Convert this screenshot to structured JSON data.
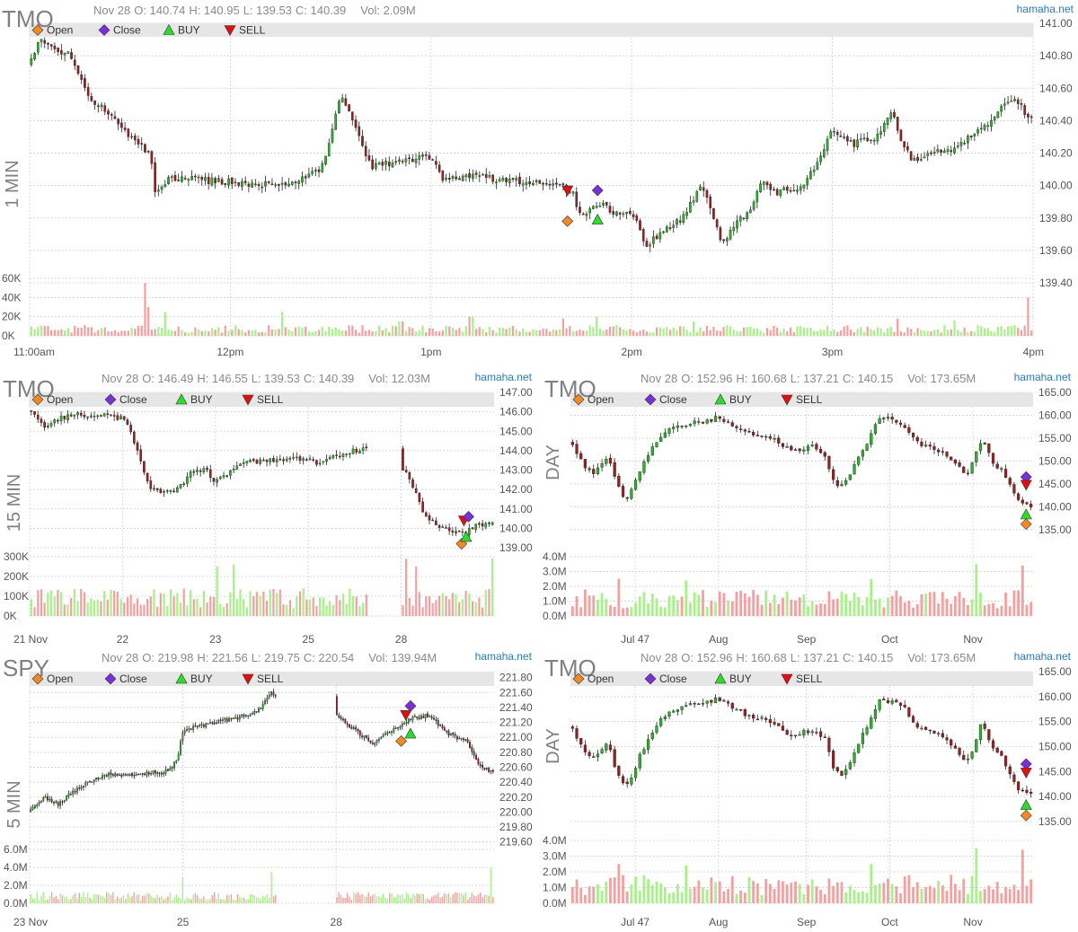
{
  "site": "hamaha.net",
  "legend": {
    "items": [
      {
        "label": "Open",
        "shape": "diamond",
        "color": "#f08a24"
      },
      {
        "label": "Close",
        "shape": "diamond",
        "color": "#7b2fd6"
      },
      {
        "label": "BUY",
        "shape": "triangle-up",
        "color": "#2bdc2b"
      },
      {
        "label": "SELL",
        "shape": "triangle-down",
        "color": "#e01010"
      }
    ]
  },
  "colors": {
    "up_candle": "#2bb52b",
    "down_candle": "#9c1f1f",
    "vol_up": "#a8f08a",
    "vol_down": "#f5a0a0",
    "grid": "#d8d8d8",
    "legend_bg": "#e6e6e6",
    "label": "#808080"
  },
  "chart_data": [
    {
      "id": "c1",
      "type": "candlestick",
      "symbol": "TMO",
      "interval_label": "1 MIN",
      "header": {
        "date": "Nov 28",
        "open": "O: 140.74",
        "high": "H: 140.95",
        "low": "L: 139.53",
        "close": "C: 140.39",
        "volume": "Vol: 2.09M"
      },
      "y_ticks": [
        "141.00",
        "140.80",
        "140.60",
        "140.40",
        "140.20",
        "140.00",
        "139.80",
        "139.60",
        "139.40"
      ],
      "ylim": [
        139.4,
        141.0
      ],
      "vol_ticks": [
        "60K",
        "40K",
        "20K",
        "0K"
      ],
      "vol_max": 60000,
      "x_ticks": [
        {
          "label": "11:00am",
          "pos": 0.0
        },
        {
          "label": "12pm",
          "pos": 0.2
        },
        {
          "label": "1pm",
          "pos": 0.4
        },
        {
          "label": "2pm",
          "pos": 0.6
        },
        {
          "label": "3pm",
          "pos": 0.8
        },
        {
          "label": "4pm",
          "pos": 1.0
        }
      ],
      "anchors": [
        [
          0,
          140.75
        ],
        [
          0.01,
          140.9
        ],
        [
          0.04,
          140.8
        ],
        [
          0.06,
          140.55
        ],
        [
          0.1,
          140.3
        ],
        [
          0.12,
          140.2
        ],
        [
          0.125,
          139.95
        ],
        [
          0.14,
          140.05
        ],
        [
          0.2,
          140.02
        ],
        [
          0.26,
          140.0
        ],
        [
          0.29,
          140.1
        ],
        [
          0.3,
          140.3
        ],
        [
          0.31,
          140.58
        ],
        [
          0.325,
          140.35
        ],
        [
          0.34,
          140.12
        ],
        [
          0.4,
          140.18
        ],
        [
          0.41,
          140.05
        ],
        [
          0.45,
          140.05
        ],
        [
          0.5,
          140.02
        ],
        [
          0.53,
          140.0
        ],
        [
          0.54,
          139.97
        ],
        [
          0.55,
          139.8
        ],
        [
          0.56,
          139.85
        ],
        [
          0.57,
          139.88
        ],
        [
          0.585,
          139.82
        ],
        [
          0.6,
          139.85
        ],
        [
          0.615,
          139.62
        ],
        [
          0.63,
          139.72
        ],
        [
          0.65,
          139.8
        ],
        [
          0.67,
          140.0
        ],
        [
          0.685,
          139.75
        ],
        [
          0.69,
          139.65
        ],
        [
          0.72,
          139.88
        ],
        [
          0.73,
          140.05
        ],
        [
          0.74,
          139.95
        ],
        [
          0.77,
          140.0
        ],
        [
          0.79,
          140.2
        ],
        [
          0.8,
          140.35
        ],
        [
          0.82,
          140.25
        ],
        [
          0.83,
          140.3
        ],
        [
          0.84,
          140.28
        ],
        [
          0.86,
          140.45
        ],
        [
          0.87,
          140.25
        ],
        [
          0.88,
          140.15
        ],
        [
          0.9,
          140.2
        ],
        [
          0.92,
          140.22
        ],
        [
          0.94,
          140.32
        ],
        [
          0.96,
          140.4
        ],
        [
          0.97,
          140.5
        ],
        [
          0.98,
          140.55
        ],
        [
          1.0,
          140.39
        ]
      ],
      "trend_amp": 0.04,
      "n": 300,
      "vol_base": 8000,
      "vol_spikes": [
        [
          0.115,
          55000
        ],
        [
          0.12,
          30000
        ],
        [
          0.135,
          25000
        ],
        [
          0.25,
          25000
        ],
        [
          0.37,
          15000
        ],
        [
          0.44,
          20000
        ],
        [
          0.53,
          18000
        ],
        [
          0.565,
          20000
        ],
        [
          0.66,
          15000
        ],
        [
          0.74,
          15000
        ],
        [
          0.865,
          18000
        ],
        [
          0.92,
          16000
        ],
        [
          0.995,
          40000
        ]
      ],
      "markers": [
        {
          "type": "SELL",
          "x": 0.536,
          "y": 139.97
        },
        {
          "type": "Open",
          "x": 0.536,
          "y": 139.78
        },
        {
          "type": "Close",
          "x": 0.566,
          "y": 139.97
        },
        {
          "type": "BUY",
          "x": 0.566,
          "y": 139.79
        }
      ],
      "gaps": []
    },
    {
      "id": "c2",
      "type": "candlestick",
      "symbol": "TMO",
      "interval_label": "15 MIN",
      "header": {
        "date": "Nov 28",
        "open": "O: 146.49",
        "high": "H: 146.55",
        "low": "L: 139.53",
        "close": "C: 140.39",
        "volume": "Vol: 12.03M"
      },
      "y_ticks": [
        "147.00",
        "146.00",
        "145.00",
        "144.00",
        "143.00",
        "142.00",
        "141.00",
        "140.00",
        "139.00"
      ],
      "ylim": [
        139.0,
        147.0
      ],
      "vol_ticks": [
        "300K",
        "200K",
        "100K",
        "0K"
      ],
      "vol_max": 300000,
      "x_ticks": [
        {
          "label": "21 Nov",
          "pos": 0.0
        },
        {
          "label": "22",
          "pos": 0.2
        },
        {
          "label": "23",
          "pos": 0.4
        },
        {
          "label": "25",
          "pos": 0.6
        },
        {
          "label": "28",
          "pos": 0.8
        }
      ],
      "anchors": [
        [
          0,
          146.1
        ],
        [
          0.03,
          145.2
        ],
        [
          0.06,
          145.6
        ],
        [
          0.1,
          145.9
        ],
        [
          0.14,
          145.7
        ],
        [
          0.17,
          145.85
        ],
        [
          0.19,
          145.6
        ],
        [
          0.2,
          145.9
        ],
        [
          0.22,
          144.8
        ],
        [
          0.24,
          143.3
        ],
        [
          0.26,
          142.0
        ],
        [
          0.3,
          141.9
        ],
        [
          0.33,
          142.2
        ],
        [
          0.35,
          143.0
        ],
        [
          0.38,
          143.0
        ],
        [
          0.4,
          142.4
        ],
        [
          0.42,
          142.7
        ],
        [
          0.45,
          143.3
        ],
        [
          0.5,
          143.5
        ],
        [
          0.55,
          143.6
        ],
        [
          0.6,
          143.55
        ],
        [
          0.62,
          143.3
        ],
        [
          0.65,
          143.7
        ],
        [
          0.72,
          144.1
        ],
        [
          0.81,
          142.9
        ],
        [
          0.83,
          141.9
        ],
        [
          0.85,
          140.6
        ],
        [
          0.88,
          140.1
        ],
        [
          0.92,
          139.8
        ],
        [
          0.935,
          139.7
        ],
        [
          0.96,
          140.1
        ],
        [
          1.0,
          140.4
        ]
      ],
      "trend_amp": 0.25,
      "n": 140,
      "vol_base": 100000,
      "vol_spikes": [
        [
          0.4,
          250000
        ],
        [
          0.44,
          260000
        ],
        [
          0.81,
          290000
        ],
        [
          0.83,
          250000
        ],
        [
          0.995,
          290000
        ]
      ],
      "markers": [
        {
          "type": "SELL",
          "x": 0.935,
          "y": 140.4
        },
        {
          "type": "Close",
          "x": 0.945,
          "y": 140.6
        },
        {
          "type": "Open",
          "x": 0.93,
          "y": 139.2
        },
        {
          "type": "BUY",
          "x": 0.94,
          "y": 139.55
        }
      ],
      "gaps": [
        [
          0.73,
          0.8
        ]
      ]
    },
    {
      "id": "c3",
      "type": "candlestick",
      "symbol": "TMO",
      "interval_label": "DAY",
      "header": {
        "date": "Nov 28",
        "open": "O: 152.96",
        "high": "H: 160.68",
        "low": "L: 137.21",
        "close": "C: 140.15",
        "volume": "Vol: 173.65M"
      },
      "y_ticks": [
        "165.00",
        "160.00",
        "155.00",
        "150.00",
        "145.00",
        "140.00",
        "135.00"
      ],
      "ylim": [
        133.0,
        165.0
      ],
      "vol_ticks": [
        "4.0M",
        "3.0M",
        "2.0M",
        "1.0M",
        "0.0M"
      ],
      "vol_max": 4000000,
      "x_ticks": [
        {
          "label": "Jul 47",
          "pos": 0.14
        },
        {
          "label": "Aug",
          "pos": 0.32
        },
        {
          "label": "Sep",
          "pos": 0.51
        },
        {
          "label": "Oct",
          "pos": 0.69
        },
        {
          "label": "Nov",
          "pos": 0.87
        }
      ],
      "anchors": [
        [
          0,
          154.0
        ],
        [
          0.03,
          149.0
        ],
        [
          0.05,
          147.5
        ],
        [
          0.08,
          151.0
        ],
        [
          0.1,
          145.0
        ],
        [
          0.12,
          141.5
        ],
        [
          0.15,
          148.0
        ],
        [
          0.18,
          153.5
        ],
        [
          0.21,
          157.0
        ],
        [
          0.25,
          158.0
        ],
        [
          0.28,
          158.5
        ],
        [
          0.32,
          159.5
        ],
        [
          0.36,
          157.0
        ],
        [
          0.4,
          156.0
        ],
        [
          0.44,
          155.0
        ],
        [
          0.48,
          152.0
        ],
        [
          0.52,
          153.5
        ],
        [
          0.55,
          151.5
        ],
        [
          0.57,
          145.0
        ],
        [
          0.59,
          144.5
        ],
        [
          0.62,
          150.0
        ],
        [
          0.65,
          156.0
        ],
        [
          0.67,
          159.5
        ],
        [
          0.7,
          159.0
        ],
        [
          0.72,
          158.0
        ],
        [
          0.75,
          154.0
        ],
        [
          0.8,
          152.0
        ],
        [
          0.83,
          149.5
        ],
        [
          0.86,
          147.0
        ],
        [
          0.89,
          155.0
        ],
        [
          0.91,
          150.0
        ],
        [
          0.93,
          148.0
        ],
        [
          0.95,
          145.0
        ],
        [
          0.97,
          141.0
        ],
        [
          1.0,
          140.15
        ]
      ],
      "trend_amp": 1.0,
      "n": 110,
      "vol_base": 1300000,
      "vol_spikes": [
        [
          0.1,
          2500000
        ],
        [
          0.25,
          2400000
        ],
        [
          0.65,
          2500000
        ],
        [
          0.88,
          3500000
        ],
        [
          0.98,
          3400000
        ]
      ],
      "markers": [
        {
          "type": "Close",
          "x": 0.985,
          "y": 146.5
        },
        {
          "type": "SELL",
          "x": 0.985,
          "y": 144.8
        },
        {
          "type": "BUY",
          "x": 0.985,
          "y": 138.3
        },
        {
          "type": "Open",
          "x": 0.985,
          "y": 136.2
        }
      ],
      "gaps": []
    },
    {
      "id": "c4",
      "type": "candlestick",
      "symbol": "SPY",
      "interval_label": "5 MIN",
      "header": {
        "date": "Nov 28",
        "open": "O: 219.98",
        "high": "H: 221.56",
        "low": "L: 219.75",
        "close": "C: 220.54",
        "volume": "Vol: 139.94M"
      },
      "y_ticks": [
        "221.80",
        "221.60",
        "221.40",
        "221.20",
        "221.00",
        "220.80",
        "220.60",
        "220.40",
        "220.20",
        "220.00",
        "219.80",
        "219.60"
      ],
      "ylim": [
        219.5,
        221.88
      ],
      "vol_ticks": [
        "6.0M",
        "4.0M",
        "2.0M",
        "0.0M"
      ],
      "vol_max": 6000000,
      "x_ticks": [
        {
          "label": "23 Nov",
          "pos": 0.0
        },
        {
          "label": "25",
          "pos": 0.33
        },
        {
          "label": "28",
          "pos": 0.66
        }
      ],
      "anchors": [
        [
          0,
          220.0
        ],
        [
          0.03,
          220.2
        ],
        [
          0.06,
          220.1
        ],
        [
          0.1,
          220.3
        ],
        [
          0.16,
          220.5
        ],
        [
          0.23,
          220.5
        ],
        [
          0.3,
          220.55
        ],
        [
          0.32,
          220.75
        ],
        [
          0.33,
          221.1
        ],
        [
          0.4,
          221.2
        ],
        [
          0.47,
          221.3
        ],
        [
          0.5,
          221.4
        ],
        [
          0.52,
          221.6
        ],
        [
          0.66,
          221.3
        ],
        [
          0.7,
          221.1
        ],
        [
          0.74,
          220.9
        ],
        [
          0.78,
          221.1
        ],
        [
          0.82,
          221.25
        ],
        [
          0.86,
          221.3
        ],
        [
          0.9,
          221.05
        ],
        [
          0.94,
          220.95
        ],
        [
          0.97,
          220.6
        ],
        [
          1.0,
          220.54
        ]
      ],
      "trend_amp": 0.05,
      "n": 220,
      "vol_base": 900000,
      "vol_spikes": [
        [
          0.33,
          2800000
        ],
        [
          0.52,
          3500000
        ],
        [
          0.995,
          4000000
        ]
      ],
      "markers": [
        {
          "type": "Close",
          "x": 0.82,
          "y": 221.42
        },
        {
          "type": "SELL",
          "x": 0.81,
          "y": 221.3
        },
        {
          "type": "BUY",
          "x": 0.82,
          "y": 221.05
        },
        {
          "type": "Open",
          "x": 0.8,
          "y": 220.95
        }
      ],
      "gaps": [
        [
          0.53,
          0.66
        ]
      ]
    },
    {
      "id": "c5",
      "type": "candlestick",
      "symbol": "TMO",
      "interval_label": "DAY",
      "header": {
        "date": "Nov 28",
        "open": "O: 152.96",
        "high": "H: 160.68",
        "low": "L: 137.21",
        "close": "C: 140.15",
        "volume": "Vol: 173.65M"
      },
      "y_ticks": [
        "165.00",
        "160.00",
        "155.00",
        "150.00",
        "145.00",
        "140.00",
        "135.00"
      ],
      "ylim": [
        133.0,
        165.0
      ],
      "vol_ticks": [
        "4.0M",
        "3.0M",
        "2.0M",
        "1.0M",
        "0.0M"
      ],
      "vol_max": 4000000,
      "x_ticks": [
        {
          "label": "Jul 47",
          "pos": 0.14
        },
        {
          "label": "Aug",
          "pos": 0.32
        },
        {
          "label": "Sep",
          "pos": 0.51
        },
        {
          "label": "Oct",
          "pos": 0.69
        },
        {
          "label": "Nov",
          "pos": 0.87
        }
      ],
      "anchors": [
        [
          0,
          154.0
        ],
        [
          0.03,
          149.0
        ],
        [
          0.05,
          147.5
        ],
        [
          0.08,
          151.0
        ],
        [
          0.1,
          145.0
        ],
        [
          0.12,
          141.5
        ],
        [
          0.15,
          148.0
        ],
        [
          0.18,
          153.5
        ],
        [
          0.21,
          157.0
        ],
        [
          0.25,
          158.0
        ],
        [
          0.28,
          158.5
        ],
        [
          0.32,
          159.5
        ],
        [
          0.36,
          157.0
        ],
        [
          0.4,
          156.0
        ],
        [
          0.44,
          155.0
        ],
        [
          0.48,
          152.0
        ],
        [
          0.52,
          153.5
        ],
        [
          0.55,
          151.5
        ],
        [
          0.57,
          145.0
        ],
        [
          0.59,
          144.5
        ],
        [
          0.62,
          150.0
        ],
        [
          0.65,
          156.0
        ],
        [
          0.67,
          159.5
        ],
        [
          0.7,
          159.0
        ],
        [
          0.72,
          158.0
        ],
        [
          0.75,
          154.0
        ],
        [
          0.8,
          152.0
        ],
        [
          0.83,
          149.5
        ],
        [
          0.86,
          147.0
        ],
        [
          0.89,
          155.0
        ],
        [
          0.91,
          150.0
        ],
        [
          0.93,
          148.0
        ],
        [
          0.95,
          145.0
        ],
        [
          0.97,
          141.0
        ],
        [
          1.0,
          140.15
        ]
      ],
      "trend_amp": 1.0,
      "n": 110,
      "vol_base": 1300000,
      "vol_spikes": [
        [
          0.1,
          2500000
        ],
        [
          0.25,
          2400000
        ],
        [
          0.65,
          2500000
        ],
        [
          0.88,
          3500000
        ],
        [
          0.98,
          3400000
        ]
      ],
      "markers": [
        {
          "type": "Close",
          "x": 0.985,
          "y": 146.5
        },
        {
          "type": "SELL",
          "x": 0.985,
          "y": 144.8
        },
        {
          "type": "BUY",
          "x": 0.985,
          "y": 138.3
        },
        {
          "type": "Open",
          "x": 0.985,
          "y": 136.2
        }
      ],
      "gaps": []
    }
  ]
}
